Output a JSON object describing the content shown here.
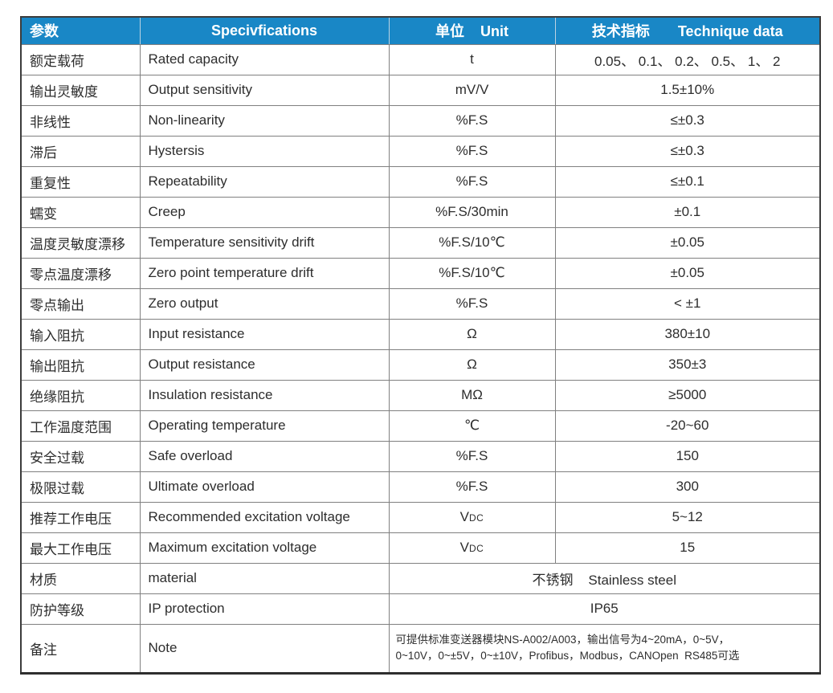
{
  "colors": {
    "header_bg": "#1987c6",
    "header_text": "#ffffff",
    "body_text": "#2d2d2d",
    "grid_border": "#808080",
    "outer_border": "#3c3c3c"
  },
  "table": {
    "header": {
      "col_param": "参数",
      "col_spec": "Specivfications",
      "col_unit": "单位    Unit",
      "col_data": "技术指标       Technique data"
    },
    "rows": [
      {
        "param_cn": "额定载荷",
        "spec_en": "Rated capacity",
        "unit": "t",
        "value": "0.05、 0.1、 0.2、 0.5、 1、 2"
      },
      {
        "param_cn": "输出灵敏度",
        "spec_en": "Output sensitivity",
        "unit": "mV/V",
        "value": "1.5±10%"
      },
      {
        "param_cn": "非线性",
        "spec_en": "Non-linearity",
        "unit": "%F.S",
        "value": "≤±0.3"
      },
      {
        "param_cn": "滞后",
        "spec_en": "Hystersis",
        "unit": "%F.S",
        "value": "≤±0.3"
      },
      {
        "param_cn": "重复性",
        "spec_en": "Repeatability",
        "unit": "%F.S",
        "value": "≤±0.1"
      },
      {
        "param_cn": "蠕变",
        "spec_en": "Creep",
        "unit": "%F.S/30min",
        "value": "±0.1"
      },
      {
        "param_cn": "温度灵敏度漂移",
        "spec_en": "Temperature sensitivity drift",
        "unit": "%F.S/10℃",
        "value": "±0.05"
      },
      {
        "param_cn": "零点温度漂移",
        "spec_en": "Zero point temperature drift",
        "unit": "%F.S/10℃",
        "value": "±0.05"
      },
      {
        "param_cn": "零点输出",
        "spec_en": "Zero output",
        "unit": "%F.S",
        "value": "< ±1"
      },
      {
        "param_cn": "输入阻抗",
        "spec_en": "Input resistance",
        "unit": "Ω",
        "value": "380±10"
      },
      {
        "param_cn": "输出阻抗",
        "spec_en": "Output resistance",
        "unit": "Ω",
        "value": "350±3"
      },
      {
        "param_cn": "绝缘阻抗",
        "spec_en": "Insulation resistance",
        "unit": "MΩ",
        "value": "≥5000"
      },
      {
        "param_cn": "工作温度范围",
        "spec_en": "Operating temperature",
        "unit": "℃",
        "value": "-20~60"
      },
      {
        "param_cn": "安全过载",
        "spec_en": "Safe overload",
        "unit": "%F.S",
        "value": "150"
      },
      {
        "param_cn": "极限过载",
        "spec_en": "Ultimate overload",
        "unit": "%F.S",
        "value": "300"
      },
      {
        "param_cn": "推荐工作电压",
        "spec_en": "Recommended excitation voltage",
        "unit": "V",
        "unit_sub": "DC",
        "value": "5~12"
      },
      {
        "param_cn": "最大工作电压",
        "spec_en": "Maximum excitation voltage",
        "unit": "V",
        "unit_sub": "DC",
        "value": "15"
      },
      {
        "param_cn": "材质",
        "spec_en": "material",
        "merged": true,
        "value": "不锈钢    Stainless steel"
      },
      {
        "param_cn": "防护等级",
        "spec_en": "IP protection",
        "merged": true,
        "value": "IP65"
      },
      {
        "param_cn": "备注",
        "spec_en": "Note",
        "merged": true,
        "note": true,
        "value_lines": [
          "可提供标准变送器模块NS-A002/A003，输出信号为4~20mA，0~5V，",
          "0~10V，0~±5V，0~±10V，Profibus，Modbus，CANOpen  RS485可选"
        ]
      }
    ]
  }
}
